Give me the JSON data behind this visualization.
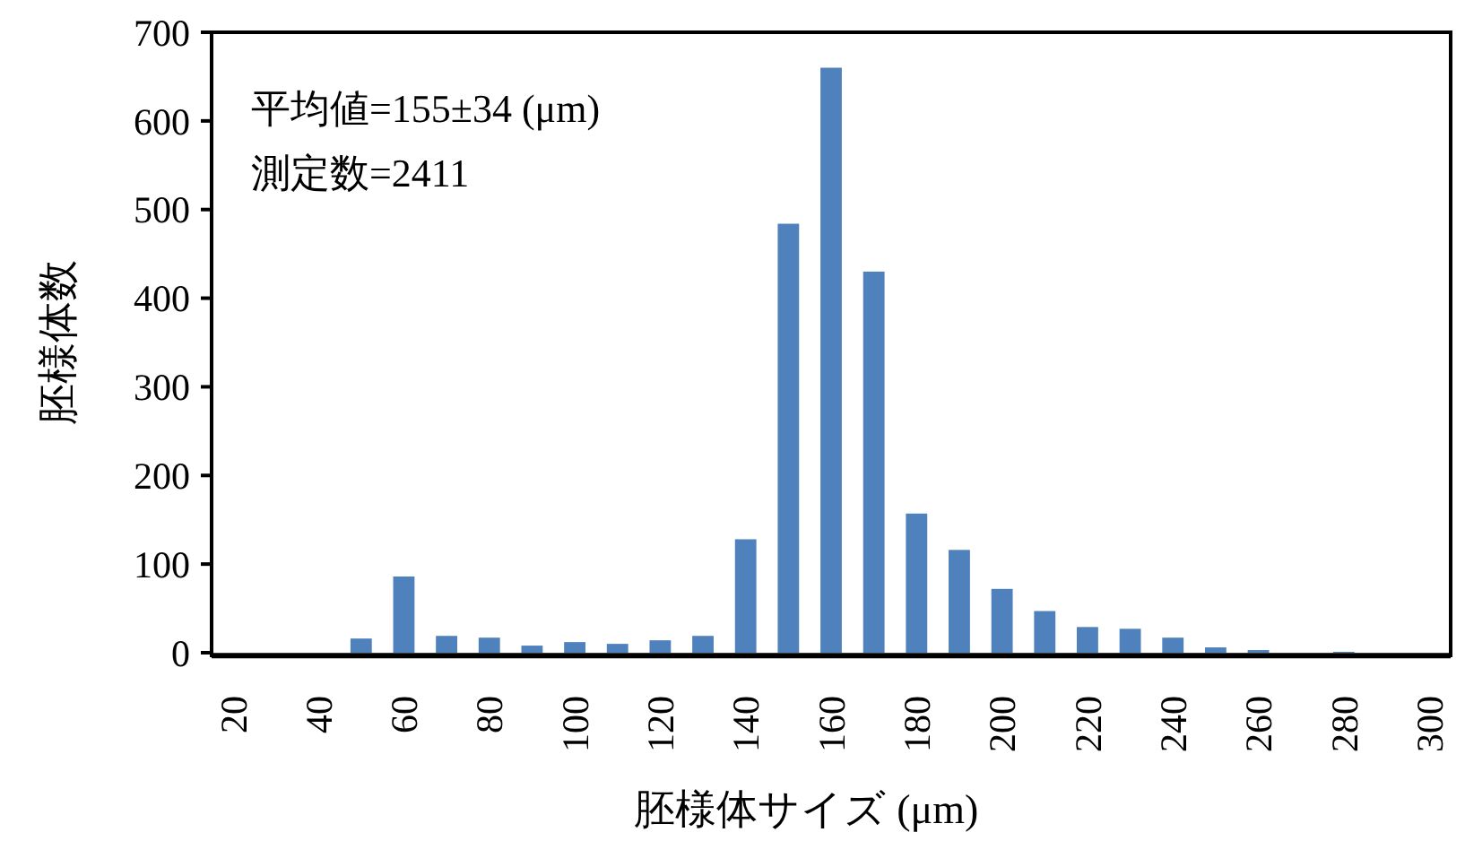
{
  "chart_data": {
    "type": "bar",
    "xlabel": "胚様体サイズ (μm)",
    "ylabel": "胚様体数",
    "categories": [
      "20",
      null,
      "40",
      null,
      "60",
      null,
      "80",
      null,
      "100",
      null,
      "120",
      null,
      "140",
      null,
      "160",
      null,
      "180",
      null,
      "200",
      null,
      "220",
      null,
      "240",
      null,
      "260",
      null,
      "280",
      null,
      "300"
    ],
    "values": [
      0,
      0,
      0,
      16,
      86,
      19,
      17,
      8,
      12,
      10,
      14,
      19,
      128,
      484,
      660,
      430,
      157,
      116,
      72,
      47,
      29,
      27,
      17,
      6,
      3,
      0,
      1,
      0,
      0
    ],
    "color": "#4f81bd",
    "ylim": [
      0,
      700
    ],
    "yticks": [
      0,
      100,
      200,
      300,
      400,
      500,
      600,
      700
    ],
    "grid": false,
    "annotations": [
      "平均値=155±34 (μm)",
      "測定数=2411"
    ]
  }
}
